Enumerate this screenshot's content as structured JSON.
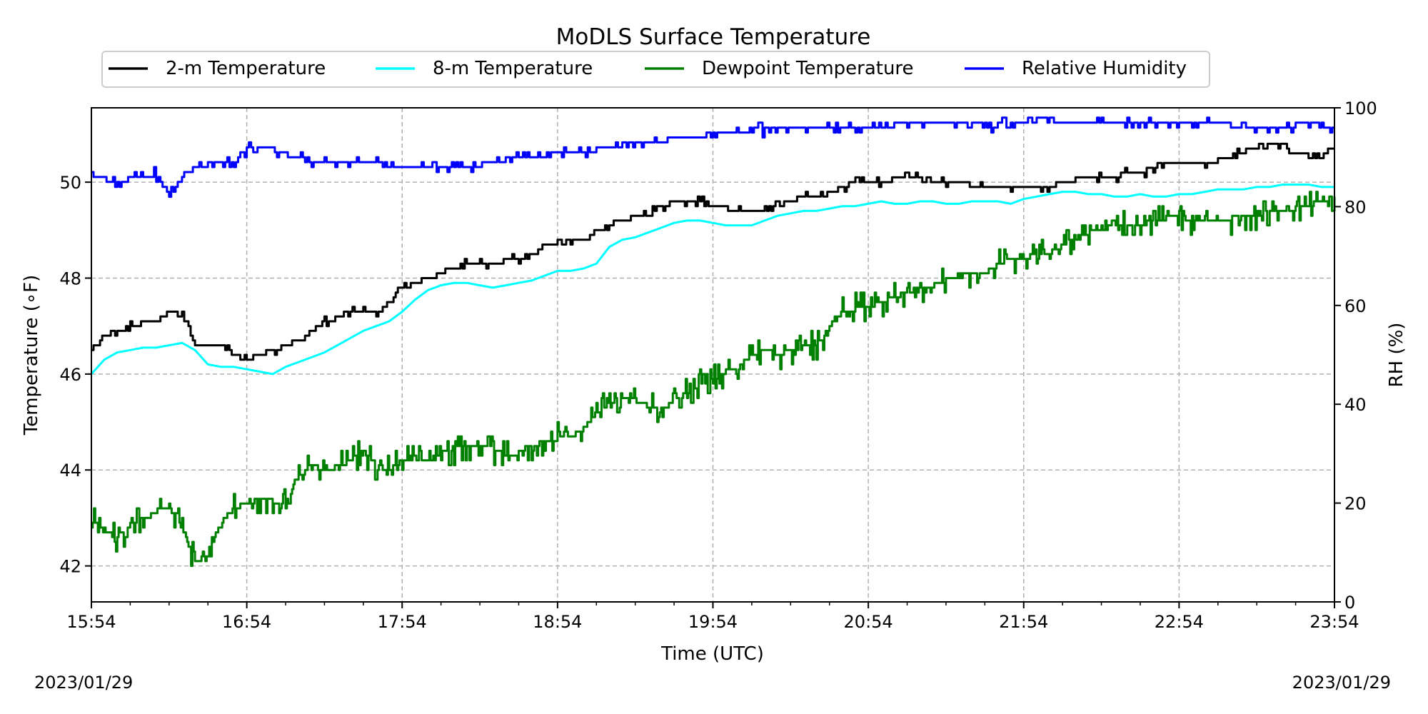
{
  "chart_data": {
    "type": "line",
    "title": "MoDLS Surface Temperature",
    "xlabel": "Time (UTC)",
    "ylabel": "Temperature (∘F)",
    "y2label": "RH (%)",
    "x_ticks": [
      "15:54",
      "16:54",
      "17:54",
      "18:54",
      "19:54",
      "20:54",
      "21:54",
      "22:54",
      "23:54"
    ],
    "xlim_minutes": [
      0,
      480
    ],
    "y_ticks": [
      42,
      44,
      46,
      48,
      50
    ],
    "ylim": [
      41.25,
      51.55
    ],
    "y2_ticks": [
      0,
      20,
      40,
      60,
      80,
      100
    ],
    "y2lim": [
      0,
      100
    ],
    "grid": true,
    "legend_position": "top-center",
    "dates": {
      "left": "2023/01/29",
      "right": "2023/01/29"
    },
    "series": [
      {
        "name": "2-m Temperature",
        "color": "#000000",
        "axis": "left",
        "style": "step",
        "x": [
          0,
          5,
          10,
          15,
          20,
          25,
          30,
          35,
          40,
          45,
          50,
          55,
          60,
          65,
          70,
          75,
          80,
          85,
          90,
          95,
          100,
          105,
          110,
          115,
          120,
          125,
          130,
          135,
          140,
          145,
          150,
          155,
          160,
          165,
          170,
          175,
          180,
          185,
          190,
          195,
          200,
          205,
          210,
          215,
          220,
          225,
          230,
          235,
          240,
          245,
          250,
          255,
          260,
          265,
          270,
          275,
          280,
          285,
          290,
          295,
          300,
          305,
          310,
          315,
          320,
          325,
          330,
          335,
          340,
          345,
          350,
          355,
          360,
          365,
          370,
          375,
          380,
          385,
          390,
          395,
          400,
          405,
          410,
          415,
          420,
          425,
          430,
          435,
          440,
          445,
          450,
          455,
          460,
          465,
          470,
          475,
          480
        ],
        "y": [
          46.5,
          46.75,
          46.9,
          47.0,
          47.1,
          47.1,
          47.3,
          47.3,
          46.6,
          46.6,
          46.6,
          46.4,
          46.3,
          46.4,
          46.5,
          46.6,
          46.7,
          46.9,
          47.1,
          47.2,
          47.3,
          47.3,
          47.3,
          47.5,
          47.8,
          47.9,
          48.0,
          48.1,
          48.2,
          48.3,
          48.3,
          48.3,
          48.4,
          48.4,
          48.5,
          48.7,
          48.75,
          48.75,
          48.75,
          49.0,
          49.1,
          49.2,
          49.3,
          49.4,
          49.5,
          49.6,
          49.6,
          49.6,
          49.5,
          49.45,
          49.4,
          49.4,
          49.45,
          49.5,
          49.6,
          49.7,
          49.7,
          49.8,
          49.9,
          50.0,
          50.0,
          50.0,
          50.05,
          50.1,
          50.1,
          50.0,
          50.0,
          50.0,
          49.9,
          49.9,
          49.9,
          49.85,
          49.85,
          49.85,
          49.9,
          50.0,
          50.05,
          50.1,
          50.1,
          50.1,
          50.2,
          50.2,
          50.3,
          50.4,
          50.4,
          50.4,
          50.35,
          50.45,
          50.55,
          50.65,
          50.75,
          50.8,
          50.8,
          50.6,
          50.55,
          50.55,
          50.7
        ]
      },
      {
        "name": "8-m Temperature",
        "color": "#00ffff",
        "axis": "left",
        "style": "line",
        "x": [
          0,
          5,
          10,
          15,
          20,
          25,
          30,
          35,
          40,
          45,
          50,
          55,
          60,
          65,
          70,
          75,
          80,
          85,
          90,
          95,
          100,
          105,
          110,
          115,
          120,
          125,
          130,
          135,
          140,
          145,
          150,
          155,
          160,
          165,
          170,
          175,
          180,
          185,
          190,
          195,
          200,
          205,
          210,
          215,
          220,
          225,
          230,
          235,
          240,
          245,
          250,
          255,
          260,
          265,
          270,
          275,
          280,
          285,
          290,
          295,
          300,
          305,
          310,
          315,
          320,
          325,
          330,
          335,
          340,
          345,
          350,
          355,
          360,
          365,
          370,
          375,
          380,
          385,
          390,
          395,
          400,
          405,
          410,
          415,
          420,
          425,
          430,
          435,
          440,
          445,
          450,
          455,
          460,
          465,
          470,
          475,
          480
        ],
        "y": [
          46.0,
          46.3,
          46.45,
          46.5,
          46.55,
          46.55,
          46.6,
          46.65,
          46.5,
          46.2,
          46.15,
          46.15,
          46.1,
          46.05,
          46.0,
          46.15,
          46.25,
          46.35,
          46.45,
          46.6,
          46.75,
          46.9,
          47.0,
          47.1,
          47.3,
          47.55,
          47.75,
          47.85,
          47.9,
          47.9,
          47.85,
          47.8,
          47.85,
          47.9,
          47.95,
          48.05,
          48.15,
          48.15,
          48.2,
          48.3,
          48.65,
          48.8,
          48.85,
          48.95,
          49.05,
          49.15,
          49.2,
          49.2,
          49.15,
          49.1,
          49.1,
          49.1,
          49.2,
          49.3,
          49.35,
          49.4,
          49.4,
          49.45,
          49.5,
          49.5,
          49.55,
          49.6,
          49.55,
          49.55,
          49.6,
          49.6,
          49.55,
          49.55,
          49.6,
          49.6,
          49.6,
          49.55,
          49.65,
          49.7,
          49.75,
          49.8,
          49.8,
          49.75,
          49.75,
          49.7,
          49.7,
          49.75,
          49.7,
          49.7,
          49.75,
          49.75,
          49.8,
          49.85,
          49.85,
          49.85,
          49.9,
          49.9,
          49.95,
          49.95,
          49.95,
          49.9,
          49.9
        ]
      },
      {
        "name": "Dewpoint Temperature",
        "color": "#008000",
        "axis": "left",
        "style": "noisy",
        "x": [
          0,
          5,
          10,
          15,
          20,
          25,
          30,
          35,
          40,
          45,
          50,
          55,
          60,
          65,
          70,
          75,
          80,
          85,
          90,
          95,
          100,
          105,
          110,
          115,
          120,
          125,
          130,
          135,
          140,
          145,
          150,
          155,
          160,
          165,
          170,
          175,
          180,
          185,
          190,
          195,
          200,
          205,
          210,
          215,
          220,
          225,
          230,
          235,
          240,
          245,
          250,
          255,
          260,
          265,
          270,
          275,
          280,
          285,
          290,
          295,
          300,
          305,
          310,
          315,
          320,
          325,
          330,
          335,
          340,
          345,
          350,
          355,
          360,
          365,
          370,
          375,
          380,
          385,
          390,
          395,
          400,
          405,
          410,
          415,
          420,
          425,
          430,
          435,
          440,
          445,
          450,
          455,
          460,
          465,
          470,
          475,
          480
        ],
        "y": [
          43.0,
          42.7,
          42.6,
          42.9,
          43.0,
          43.1,
          43.2,
          42.8,
          42.1,
          42.2,
          42.9,
          43.2,
          43.3,
          43.4,
          43.35,
          43.3,
          43.9,
          44.1,
          44.0,
          44.1,
          44.2,
          44.4,
          44.1,
          44.0,
          44.2,
          44.25,
          44.2,
          44.35,
          44.45,
          44.5,
          44.55,
          44.45,
          44.3,
          44.35,
          44.5,
          44.6,
          44.65,
          44.7,
          44.85,
          45.2,
          45.4,
          45.5,
          45.45,
          45.3,
          45.3,
          45.4,
          45.6,
          45.8,
          45.9,
          46.0,
          46.2,
          46.4,
          46.5,
          46.4,
          46.5,
          46.6,
          46.6,
          47.0,
          47.3,
          47.35,
          47.4,
          47.5,
          47.6,
          47.7,
          47.8,
          47.85,
          47.95,
          48.05,
          48.1,
          48.1,
          48.3,
          48.4,
          48.4,
          48.5,
          48.55,
          48.7,
          48.8,
          48.95,
          49.0,
          49.1,
          49.1,
          49.1,
          49.2,
          49.25,
          49.3,
          49.2,
          49.2,
          49.2,
          49.25,
          49.3,
          49.3,
          49.4,
          49.4,
          49.45,
          49.5,
          49.6,
          49.7
        ]
      },
      {
        "name": "Relative Humidity",
        "color": "#0000ff",
        "axis": "right",
        "style": "step",
        "x": [
          0,
          5,
          10,
          15,
          20,
          25,
          30,
          35,
          40,
          45,
          50,
          55,
          60,
          65,
          70,
          75,
          80,
          85,
          90,
          95,
          100,
          105,
          110,
          115,
          120,
          125,
          130,
          135,
          140,
          145,
          150,
          155,
          160,
          165,
          170,
          175,
          180,
          185,
          190,
          195,
          200,
          205,
          210,
          215,
          220,
          225,
          230,
          235,
          240,
          245,
          250,
          255,
          260,
          265,
          270,
          275,
          280,
          285,
          290,
          295,
          300,
          305,
          310,
          315,
          320,
          325,
          330,
          335,
          340,
          345,
          350,
          355,
          360,
          365,
          370,
          375,
          380,
          385,
          390,
          395,
          400,
          405,
          410,
          415,
          420,
          425,
          430,
          435,
          440,
          445,
          450,
          455,
          460,
          465,
          470,
          475,
          480
        ],
        "y": [
          86.5,
          85.5,
          85.0,
          86.0,
          86.0,
          86.5,
          82.0,
          86.0,
          88.0,
          88.5,
          88.5,
          88.5,
          91.5,
          91.5,
          91.5,
          90.5,
          89.5,
          89.0,
          89.0,
          89.0,
          89.0,
          89.0,
          88.5,
          88.0,
          88.0,
          88.0,
          88.0,
          88.0,
          88.0,
          88.0,
          88.5,
          89.0,
          89.5,
          90.0,
          90.0,
          90.5,
          90.5,
          91.0,
          91.0,
          91.5,
          92.0,
          92.5,
          92.5,
          93.0,
          93.0,
          93.5,
          93.5,
          94.0,
          94.5,
          95.0,
          95.0,
          95.5,
          95.5,
          95.5,
          95.5,
          96.0,
          96.0,
          96.0,
          96.0,
          96.0,
          96.0,
          96.0,
          96.5,
          96.5,
          96.5,
          96.5,
          96.5,
          96.5,
          96.5,
          96.5,
          96.5,
          96.5,
          97.0,
          97.5,
          97.5,
          97.0,
          97.0,
          97.0,
          97.0,
          97.0,
          97.0,
          97.0,
          97.0,
          97.0,
          96.5,
          96.5,
          96.5,
          96.5,
          96.5,
          96.5,
          96.0,
          96.0,
          96.0,
          96.0,
          96.5,
          96.5,
          96.0
        ]
      }
    ]
  }
}
